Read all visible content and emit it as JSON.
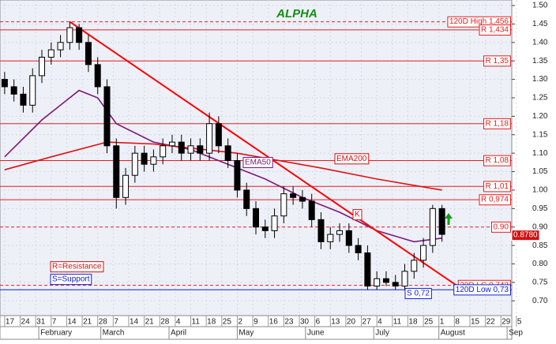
{
  "chart_data": {
    "type": "candlestick",
    "title": "ALPHA",
    "title_color": "#109010",
    "background": "#eef0f8",
    "grid": true,
    "xlim": [
      -1.5,
      163.5
    ],
    "ylim": [
      0.66,
      1.515
    ],
    "xticks": [
      {
        "value": 0,
        "label": "17"
      },
      {
        "value": 5,
        "label": "24"
      },
      {
        "value": 10,
        "label": "31"
      },
      {
        "value": 15,
        "label": "7"
      },
      {
        "value": 20,
        "label": "14"
      },
      {
        "value": 25,
        "label": "21"
      },
      {
        "value": 30,
        "label": "28"
      },
      {
        "value": 35,
        "label": "7"
      },
      {
        "value": 40,
        "label": "14"
      },
      {
        "value": 45,
        "label": "21"
      },
      {
        "value": 50,
        "label": "28"
      },
      {
        "value": 55,
        "label": "4"
      },
      {
        "value": 60,
        "label": "11"
      },
      {
        "value": 65,
        "label": "18"
      },
      {
        "value": 70,
        "label": "25"
      },
      {
        "value": 75,
        "label": "2"
      },
      {
        "value": 80,
        "label": "9"
      },
      {
        "value": 85,
        "label": "16"
      },
      {
        "value": 90,
        "label": "23"
      },
      {
        "value": 95,
        "label": "30"
      },
      {
        "value": 100,
        "label": "6"
      },
      {
        "value": 105,
        "label": "13"
      },
      {
        "value": 110,
        "label": "20"
      },
      {
        "value": 115,
        "label": "27"
      },
      {
        "value": 120,
        "label": "4"
      },
      {
        "value": 125,
        "label": "11"
      },
      {
        "value": 130,
        "label": "18"
      },
      {
        "value": 135,
        "label": "25"
      },
      {
        "value": 140,
        "label": "1"
      },
      {
        "value": 145,
        "label": "8"
      },
      {
        "value": 150,
        "label": "15"
      },
      {
        "value": 155,
        "label": "22"
      },
      {
        "value": 160,
        "label": "29"
      },
      {
        "value": 165,
        "label": "5"
      }
    ],
    "months": [
      {
        "value": 11,
        "label": "February"
      },
      {
        "value": 31,
        "label": "March"
      },
      {
        "value": 53,
        "label": "April"
      },
      {
        "value": 75,
        "label": "May"
      },
      {
        "value": 97,
        "label": "June"
      },
      {
        "value": 119,
        "label": "July"
      },
      {
        "value": 140,
        "label": "August"
      },
      {
        "value": 162,
        "label": "Sep"
      }
    ],
    "yticks": [
      {
        "value": 0.7,
        "label": "0.70"
      },
      {
        "value": 0.75,
        "label": "0.75"
      },
      {
        "value": 0.8,
        "label": "0.80"
      },
      {
        "value": 0.85,
        "label": "0.85"
      },
      {
        "value": 0.9,
        "label": "0.90"
      },
      {
        "value": 0.95,
        "label": "0.95"
      },
      {
        "value": 1.0,
        "label": "1.00"
      },
      {
        "value": 1.05,
        "label": "1.05"
      },
      {
        "value": 1.1,
        "label": "1.10"
      },
      {
        "value": 1.15,
        "label": "1.15"
      },
      {
        "value": 1.2,
        "label": "1.20"
      },
      {
        "value": 1.25,
        "label": "1.25"
      },
      {
        "value": 1.3,
        "label": "1.30"
      },
      {
        "value": 1.35,
        "label": "1.35"
      },
      {
        "value": 1.4,
        "label": "1.40"
      },
      {
        "value": 1.45,
        "label": "1.45"
      },
      {
        "value": 1.5,
        "label": "1.50"
      }
    ],
    "x": [
      0,
      3,
      6,
      9,
      12,
      15,
      18,
      21,
      24,
      27,
      30,
      33,
      36,
      39,
      42,
      45,
      48,
      51,
      54,
      57,
      60,
      63,
      66,
      69,
      72,
      75,
      78,
      81,
      84,
      87,
      90,
      93,
      96,
      99,
      102,
      105,
      108,
      111,
      114,
      117,
      120,
      123,
      126,
      129,
      132,
      135,
      138,
      141
    ],
    "open": [
      1.3,
      1.28,
      1.26,
      1.23,
      1.31,
      1.36,
      1.38,
      1.4,
      1.44,
      1.4,
      1.34,
      1.28,
      1.12,
      0.98,
      1.04,
      1.1,
      1.07,
      1.09,
      1.12,
      1.13,
      1.1,
      1.12,
      1.1,
      1.18,
      1.12,
      1.08,
      1.0,
      0.95,
      0.9,
      0.89,
      0.93,
      0.99,
      0.98,
      0.97,
      0.92,
      0.86,
      0.88,
      0.89,
      0.85,
      0.83,
      0.74,
      0.76,
      0.75,
      0.74,
      0.78,
      0.81,
      0.85,
      0.95
    ],
    "high": [
      1.32,
      1.3,
      1.28,
      1.33,
      1.38,
      1.4,
      1.42,
      1.456,
      1.45,
      1.42,
      1.36,
      1.3,
      1.14,
      1.06,
      1.12,
      1.12,
      1.11,
      1.14,
      1.15,
      1.15,
      1.14,
      1.14,
      1.21,
      1.2,
      1.14,
      1.1,
      1.02,
      0.97,
      0.92,
      0.95,
      1.01,
      1.01,
      1.0,
      0.99,
      0.94,
      0.9,
      0.91,
      0.91,
      0.87,
      0.85,
      0.78,
      0.78,
      0.77,
      0.8,
      0.83,
      0.87,
      0.96,
      0.96
    ],
    "low": [
      1.26,
      1.24,
      1.21,
      1.21,
      1.29,
      1.34,
      1.36,
      1.38,
      1.38,
      1.32,
      1.26,
      1.1,
      0.95,
      0.96,
      1.02,
      1.05,
      1.05,
      1.07,
      1.1,
      1.08,
      1.08,
      1.08,
      1.08,
      1.1,
      1.06,
      0.98,
      0.93,
      0.88,
      0.87,
      0.87,
      0.91,
      0.96,
      0.95,
      0.9,
      0.84,
      0.84,
      0.86,
      0.83,
      0.81,
      0.73,
      0.73,
      0.74,
      0.73,
      0.73,
      0.76,
      0.79,
      0.83,
      0.86
    ],
    "close": [
      1.28,
      1.26,
      1.23,
      1.31,
      1.36,
      1.38,
      1.4,
      1.44,
      1.4,
      1.34,
      1.28,
      1.12,
      0.98,
      1.04,
      1.1,
      1.07,
      1.09,
      1.12,
      1.13,
      1.1,
      1.12,
      1.1,
      1.18,
      1.12,
      1.08,
      1.0,
      0.95,
      0.9,
      0.89,
      0.93,
      0.99,
      0.98,
      0.97,
      0.92,
      0.86,
      0.88,
      0.89,
      0.85,
      0.83,
      0.74,
      0.76,
      0.75,
      0.74,
      0.78,
      0.81,
      0.85,
      0.95,
      0.88
    ],
    "series": [
      {
        "name": "EMA50",
        "color": "#7a1a7a",
        "x": [
          0,
          12,
          24,
          30,
          36,
          48,
          60,
          72,
          84,
          96,
          108,
          120,
          132,
          141
        ],
        "values": [
          1.09,
          1.19,
          1.27,
          1.25,
          1.18,
          1.13,
          1.11,
          1.07,
          1.03,
          0.98,
          0.94,
          0.89,
          0.86,
          0.87
        ]
      },
      {
        "name": "EMA200",
        "color": "#e01010",
        "x": [
          0,
          15,
          33,
          48,
          75,
          102,
          120,
          141
        ],
        "values": [
          1.055,
          1.09,
          1.13,
          1.125,
          1.1,
          1.06,
          1.03,
          1.0
        ]
      }
    ],
    "trendline": {
      "color": "#ff0000",
      "x": [
        21,
        146
      ],
      "values": [
        1.456,
        0.74
      ]
    },
    "levels": [
      {
        "label": "120D High 1,456",
        "value": 1.456,
        "color": "#e02020",
        "dashed": true
      },
      {
        "label": "R 1,434",
        "value": 1.434,
        "color": "#e02020",
        "dashed": false
      },
      {
        "label": "R 1,35",
        "value": 1.35,
        "color": "#e02020",
        "dashed": false
      },
      {
        "label": "R 1,18",
        "value": 1.18,
        "color": "#e02020",
        "dashed": false
      },
      {
        "label": "R 1,08",
        "value": 1.08,
        "color": "#e02020",
        "dashed": false
      },
      {
        "label": "R 1,01",
        "value": 1.01,
        "color": "#e02020",
        "dashed": false
      },
      {
        "label": "R 0,974",
        "value": 0.974,
        "color": "#e02020",
        "dashed": false
      },
      {
        "label": "0.90",
        "value": 0.9,
        "color": "#e02020",
        "dashed": true
      },
      {
        "label": "20D LC 0,742",
        "value": 0.742,
        "color": "#e02020",
        "dashed": true
      },
      {
        "label": "120D Low 0,73",
        "value": 0.73,
        "color": "#1020d0",
        "dashed": false
      }
    ],
    "support_label": {
      "label": "S 0,72",
      "value": 0.72
    },
    "last_price": {
      "value": 0.878,
      "label": "0.8780"
    },
    "annotations": [
      "K",
      "R=Resistance",
      "S=Support"
    ]
  }
}
